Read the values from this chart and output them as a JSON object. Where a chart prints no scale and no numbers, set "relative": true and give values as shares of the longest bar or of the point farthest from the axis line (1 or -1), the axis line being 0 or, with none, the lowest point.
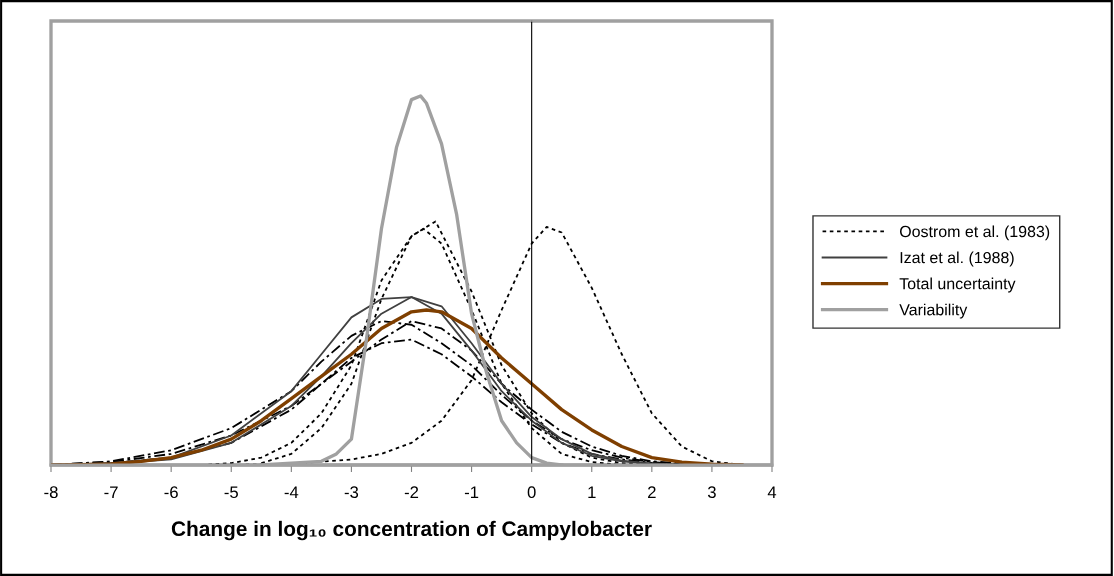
{
  "chart_data": {
    "type": "line",
    "relative": true,
    "xlabel": "Change in log₁₀ concentration of Campylobacter",
    "xlim": [
      -8,
      4
    ],
    "xticks": [
      -8,
      -7,
      -6,
      -5,
      -4,
      -3,
      -2,
      -1,
      0,
      1,
      2,
      3,
      4
    ],
    "tick_labels": "x",
    "legend": "right",
    "marker": "none",
    "series": [
      {
        "name": "Oostrom et al. (1983)",
        "color": "#000000",
        "line_style": "dotted",
        "x": [
          -5.5,
          -5,
          -4.5,
          -4,
          -3.5,
          -3,
          -2.5,
          -2,
          -1.6,
          -1,
          -0.5,
          0,
          0.5,
          1,
          1.5,
          2
        ],
        "values": [
          0,
          0.005,
          0.02,
          0.06,
          0.14,
          0.27,
          0.5,
          0.62,
          0.66,
          0.47,
          0.27,
          0.14,
          0.06,
          0.02,
          0.005,
          0
        ]
      },
      {
        "color": "#000000",
        "line_style": "dotted",
        "x": [
          -4.5,
          -4,
          -3.5,
          -3,
          -2.5,
          -2,
          -1.8,
          -1.5,
          -1,
          -0.5,
          0,
          0.5,
          1,
          1.5
        ],
        "values": [
          0.005,
          0.03,
          0.1,
          0.22,
          0.45,
          0.62,
          0.64,
          0.6,
          0.42,
          0.22,
          0.1,
          0.03,
          0.008,
          0
        ]
      },
      {
        "color": "#000000",
        "line_style": "dotted",
        "x": [
          -5,
          -4,
          -3,
          -2.5,
          -2,
          -1.5,
          -1,
          -0.5,
          0,
          0.25,
          0.5,
          1,
          1.5,
          2,
          2.5,
          3,
          3.5
        ],
        "values": [
          0,
          0.003,
          0.015,
          0.03,
          0.06,
          0.12,
          0.23,
          0.42,
          0.6,
          0.645,
          0.63,
          0.48,
          0.3,
          0.14,
          0.05,
          0.01,
          0
        ]
      },
      {
        "color": "#000000",
        "line_style": "dashed",
        "x": [
          -8,
          -7.5,
          -7,
          -6,
          -5,
          -4,
          -3.5,
          -3,
          -2.5,
          -2,
          -1.5,
          -1,
          -0.5,
          0,
          0.5,
          1,
          1.5,
          2,
          2.5,
          3
        ],
        "values": [
          0,
          0.005,
          0.01,
          0.04,
          0.1,
          0.2,
          0.28,
          0.35,
          0.39,
          0.38,
          0.33,
          0.27,
          0.19,
          0.12,
          0.07,
          0.04,
          0.02,
          0.008,
          0.002,
          0
        ]
      },
      {
        "color": "#000000",
        "line_style": "dashed",
        "x": [
          -8,
          -7,
          -6,
          -5,
          -4,
          -3.5,
          -3,
          -2.5,
          -2,
          -1.5,
          -1,
          -0.5,
          0,
          0.5,
          1,
          1.5,
          2,
          2.5
        ],
        "values": [
          0,
          0.008,
          0.03,
          0.08,
          0.16,
          0.22,
          0.29,
          0.33,
          0.34,
          0.3,
          0.24,
          0.17,
          0.11,
          0.06,
          0.03,
          0.015,
          0.006,
          0
        ]
      },
      {
        "color": "#000000",
        "line_style": "dashed",
        "x": [
          -7.5,
          -7,
          -6,
          -5,
          -4,
          -3.5,
          -3,
          -2.5,
          -2,
          -1.5,
          -1,
          -0.5,
          0,
          0.5,
          1,
          1.5,
          2,
          2.5,
          3
        ],
        "values": [
          0,
          0.005,
          0.02,
          0.06,
          0.15,
          0.22,
          0.28,
          0.34,
          0.39,
          0.37,
          0.31,
          0.22,
          0.15,
          0.09,
          0.05,
          0.025,
          0.01,
          0.004,
          0
        ]
      },
      {
        "name": "Izat et al. (1988)",
        "color": "#404040",
        "line_style": "solid",
        "x": [
          -8,
          -7,
          -6,
          -5,
          -4,
          -3.5,
          -3,
          -2.5,
          -2,
          -1.5,
          -1,
          -0.5,
          0,
          0.5,
          1,
          1.5,
          2,
          2.5
        ],
        "values": [
          0,
          0.005,
          0.02,
          0.08,
          0.2,
          0.3,
          0.4,
          0.45,
          0.455,
          0.43,
          0.33,
          0.22,
          0.13,
          0.07,
          0.03,
          0.012,
          0.004,
          0
        ]
      },
      {
        "color": "#404040",
        "line_style": "solid",
        "x": [
          -7.5,
          -7,
          -6,
          -5,
          -4,
          -3.5,
          -3,
          -2.5,
          -2,
          -1.5,
          -1,
          -0.5,
          0,
          0.5,
          1,
          1.5,
          2,
          2.5
        ],
        "values": [
          0,
          0.003,
          0.015,
          0.06,
          0.16,
          0.24,
          0.33,
          0.41,
          0.455,
          0.41,
          0.31,
          0.2,
          0.12,
          0.06,
          0.025,
          0.01,
          0.003,
          0
        ]
      },
      {
        "name": "Total uncertainty",
        "color": "#7f3f00",
        "line_style": "solid",
        "x": [
          -8,
          -7.5,
          -7,
          -6.5,
          -6,
          -5.5,
          -5,
          -4.5,
          -4,
          -3.5,
          -3,
          -2.5,
          -2,
          -1.75,
          -1.5,
          -1,
          -0.5,
          0,
          0.5,
          1,
          1.5,
          2,
          2.5,
          3,
          3.5
        ],
        "values": [
          0,
          0.001,
          0.003,
          0.01,
          0.02,
          0.04,
          0.07,
          0.12,
          0.18,
          0.24,
          0.3,
          0.37,
          0.415,
          0.42,
          0.415,
          0.37,
          0.29,
          0.22,
          0.15,
          0.095,
          0.05,
          0.02,
          0.008,
          0.002,
          0
        ]
      },
      {
        "name": "Variability",
        "color": "#a0a0a0",
        "line_style": "solid",
        "x": [
          -4.5,
          -3.5,
          -3.25,
          -3,
          -2.75,
          -2.5,
          -2.25,
          -2,
          -1.85,
          -1.75,
          -1.5,
          -1.25,
          -1,
          -0.75,
          -0.5,
          -0.25,
          0,
          0.25,
          0.5
        ],
        "values": [
          0,
          0.01,
          0.03,
          0.07,
          0.34,
          0.64,
          0.86,
          0.99,
          1.0,
          0.98,
          0.87,
          0.68,
          0.41,
          0.25,
          0.12,
          0.06,
          0.02,
          0.005,
          0
        ]
      }
    ]
  }
}
